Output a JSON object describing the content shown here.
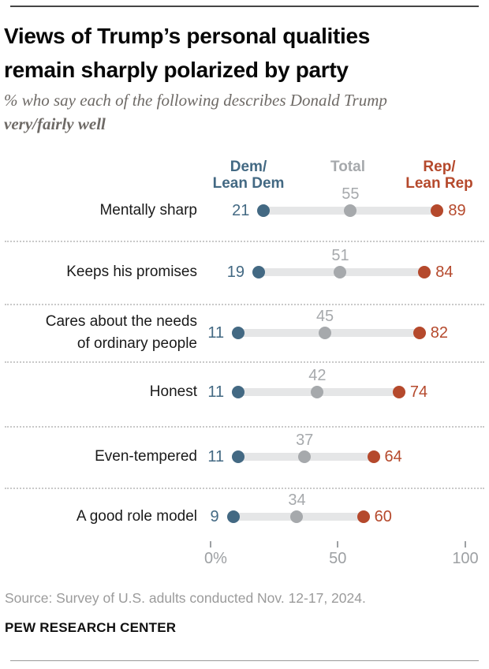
{
  "header": {
    "title": "Views of Trump’s personal qualities\nremain sharply polarized by party",
    "subtitle_text": "% who say each of the following describes Donald Trump ",
    "subtitle_bold": "very/fairly well"
  },
  "legend": {
    "dem": "Dem/\nLean Dem",
    "total": "Total",
    "rep": "Rep/\nLean Rep"
  },
  "colors": {
    "dem": "#436983",
    "total": "#a6a9ac",
    "rep": "#b5492c",
    "bar": "#e5e6e7"
  },
  "chart_data": {
    "type": "scatter",
    "variant": "dumbbell_dot_plot",
    "title": "Views of Trump’s personal qualities remain sharply polarized by party",
    "subtitle": "% who say each of the following describes Donald Trump very/fairly well",
    "categories": [
      "Mentally sharp",
      "Keeps his promises",
      "Cares about the needs\nof ordinary people",
      "Honest",
      "Even-tempered",
      "A good role model"
    ],
    "series": [
      {
        "name": "Dem/Lean Dem",
        "values": [
          21,
          19,
          11,
          11,
          11,
          9
        ]
      },
      {
        "name": "Total",
        "values": [
          55,
          51,
          45,
          42,
          37,
          34
        ]
      },
      {
        "name": "Rep/Lean Rep",
        "values": [
          89,
          84,
          82,
          74,
          64,
          60
        ]
      }
    ],
    "xlabel": "",
    "ylabel": "",
    "xlim": [
      0,
      100
    ],
    "grid": false,
    "legend_position": "top"
  },
  "axis": {
    "ticks": [
      {
        "label": "0%",
        "value": 0
      },
      {
        "label": "50",
        "value": 50
      },
      {
        "label": "100",
        "value": 100
      }
    ]
  },
  "footer": {
    "source": "Source: Survey of U.S. adults conducted Nov. 12-17, 2024.",
    "brand": "PEW RESEARCH CENTER"
  }
}
